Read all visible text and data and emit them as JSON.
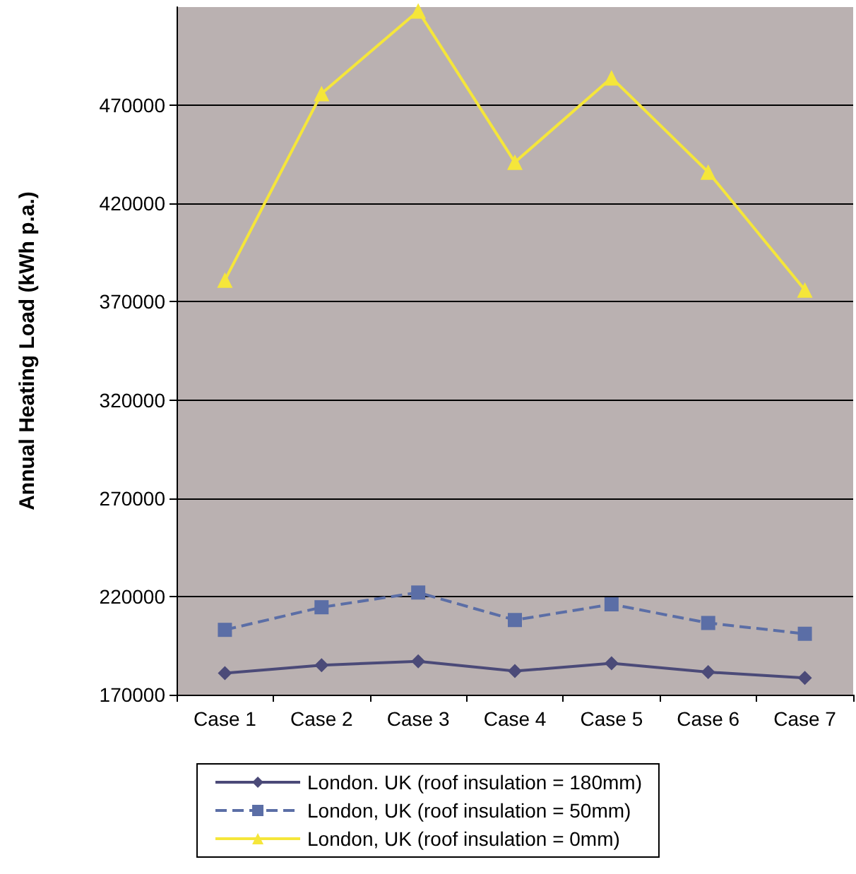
{
  "chart_data": {
    "type": "line",
    "ylabel": "Annual Heating Load (kWh p.a.)",
    "categories": [
      "Case 1",
      "Case 2",
      "Case 3",
      "Case 4",
      "Case 5",
      "Case 6",
      "Case 7"
    ],
    "series": [
      {
        "name": "London. UK (roof insulation = 180mm)",
        "color": "#4b4a78",
        "marker": "diamond",
        "line_style": "solid",
        "values": [
          181000,
          185000,
          187000,
          182000,
          186000,
          181500,
          178500
        ]
      },
      {
        "name": "London, UK (roof insulation = 50mm)",
        "color": "#5b6ea6",
        "marker": "square",
        "line_style": "dashed",
        "values": [
          203000,
          214500,
          222000,
          208000,
          216000,
          206500,
          201000
        ]
      },
      {
        "name": "London, UK (roof insulation = 0mm)",
        "color": "#f5e63a",
        "marker": "triangle",
        "line_style": "solid",
        "values": [
          381000,
          476000,
          518000,
          441000,
          484000,
          436000,
          376000
        ]
      }
    ],
    "ylim": [
      170000,
      520000
    ],
    "yticks": [
      170000,
      220000,
      270000,
      320000,
      370000,
      420000,
      470000
    ],
    "grid": "y",
    "legend": "bottom"
  }
}
